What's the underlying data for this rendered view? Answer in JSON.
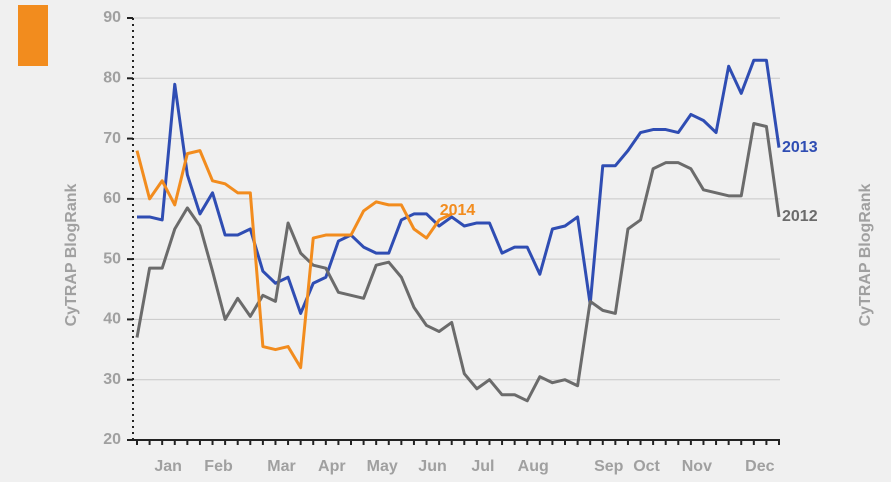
{
  "chart_data": {
    "type": "line",
    "y_label": "CyTRAP BlogRank",
    "y2_label": "CyTRAP BlogRank",
    "categories": [
      null,
      null,
      "Jan",
      null,
      null,
      null,
      "Feb",
      null,
      null,
      null,
      null,
      "Mar",
      null,
      null,
      null,
      "Apr",
      null,
      null,
      null,
      "May",
      null,
      null,
      null,
      "Jun",
      null,
      null,
      null,
      "Jul",
      null,
      null,
      null,
      "Aug",
      null,
      null,
      null,
      null,
      null,
      "Sep",
      null,
      null,
      "Oct",
      null,
      null,
      null,
      "Nov",
      null,
      null,
      null,
      null,
      "Dec",
      null,
      null
    ],
    "series": [
      {
        "name": "2013",
        "color": "#2f4db3",
        "values": [
          57,
          57,
          56.5,
          79,
          64,
          57.5,
          61,
          54,
          54,
          55,
          48,
          46,
          47,
          41,
          46,
          47,
          53,
          54,
          52,
          51,
          51,
          56.5,
          57.5,
          57.5,
          55.5,
          57,
          55.5,
          56,
          56,
          51,
          52,
          52,
          47.5,
          55,
          55.5,
          57,
          42.5,
          65.5,
          65.5,
          68,
          71,
          71.5,
          71.5,
          71,
          74,
          73,
          71,
          82,
          77.5,
          83,
          83,
          68.5
        ]
      },
      {
        "name": "2012",
        "color": "#6b6b6b",
        "values": [
          37,
          48.5,
          48.5,
          55,
          58.5,
          55.5,
          48,
          40,
          43.5,
          40.5,
          44,
          43,
          56,
          51,
          49,
          48.5,
          44.5,
          44,
          43.5,
          49,
          49.5,
          47,
          42,
          39,
          38,
          39.5,
          31,
          28.5,
          30,
          27.5,
          27.5,
          26.5,
          30.5,
          29.5,
          30,
          29,
          43,
          41.5,
          41,
          55,
          56.5,
          65,
          66,
          66,
          65,
          61.5,
          61,
          60.5,
          60.5,
          72.5,
          72,
          57
        ]
      },
      {
        "name": "2014",
        "color": "#f28c1e",
        "values": [
          68,
          60,
          63,
          59,
          67.5,
          68,
          63,
          62.5,
          61,
          61,
          35.5,
          35,
          35.5,
          32,
          53.5,
          54,
          54,
          54,
          58,
          59.5,
          59,
          59,
          55,
          53.5,
          56.5,
          57.5,
          null,
          null,
          null,
          null,
          null,
          null,
          null,
          null,
          null,
          null,
          null,
          null,
          null,
          null,
          null,
          null,
          null,
          null,
          null,
          null,
          null,
          null,
          null,
          null,
          null,
          null
        ]
      }
    ],
    "ylim": [
      20,
      90
    ],
    "yticks": [
      20,
      30,
      40,
      50,
      60,
      70,
      80,
      90
    ],
    "grid": true
  }
}
